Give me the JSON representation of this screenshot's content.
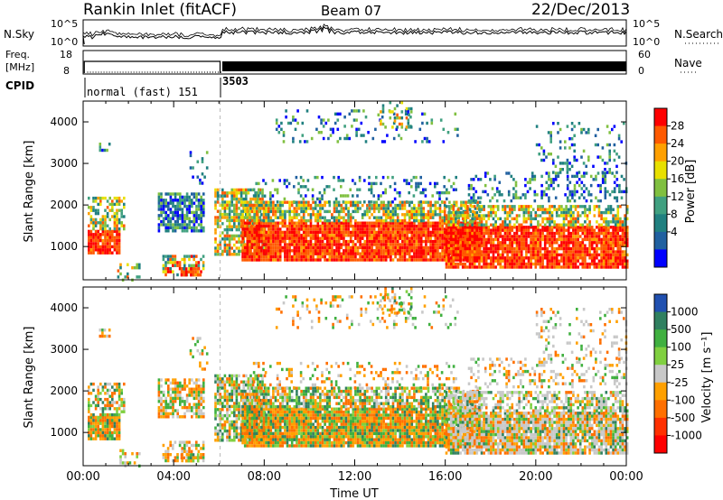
{
  "header": {
    "station": "Rankin Inlet (fitACF)",
    "beam": "Beam 07",
    "date": "22/Dec/2013"
  },
  "time_axis": {
    "label": "Time UT",
    "ticks": [
      "00:00",
      "04:00",
      "08:00",
      "12:00",
      "16:00",
      "20:00",
      "00:00"
    ],
    "range_hours": [
      0,
      24
    ]
  },
  "top_panels": {
    "nsky": {
      "left_label": "N.Sky",
      "right_label": "N.Search",
      "left_ticks": [
        "10^5",
        "10^0"
      ],
      "right_ticks": [
        "10^5",
        "10^0"
      ]
    },
    "freq": {
      "left_label_line1": "Freq.",
      "left_label_line2": "[MHz]",
      "right_label": "Nave",
      "left_ticks": [
        "18",
        "8"
      ],
      "right_ticks": [
        "60",
        "0"
      ]
    },
    "cpid": {
      "label": "CPID",
      "segments": [
        {
          "label": "normal (fast) 151",
          "start": 0,
          "end": 6.1
        },
        {
          "label": "3503",
          "start": 6.1,
          "end": 24
        }
      ]
    }
  },
  "chart_data": [
    {
      "type": "heatmap",
      "ylabel": "Slant Range [km]",
      "xlabel": "",
      "x_range_hours": [
        0,
        24
      ],
      "ylim": [
        200,
        4500
      ],
      "y_ticks": [
        1000,
        2000,
        3000,
        4000
      ],
      "colorbar": {
        "label": "Power [dB]",
        "ticks": [
          "28",
          "24",
          "20",
          "16",
          "12",
          "8",
          "4"
        ],
        "colors": [
          "#ff0000",
          "#ff5a00",
          "#ffa000",
          "#e8e000",
          "#80c040",
          "#40a080",
          "#208080",
          "#2060a0",
          "#0000ff"
        ]
      }
    },
    {
      "type": "heatmap",
      "ylabel": "Slant Range [km]",
      "xlabel": "Time UT",
      "x_range_hours": [
        0,
        24
      ],
      "ylim": [
        200,
        4500
      ],
      "y_ticks": [
        1000,
        2000,
        3000,
        4000
      ],
      "colorbar": {
        "label": "Velocity [m s⁻¹]",
        "ticks": [
          "1000",
          "500",
          "100",
          "25",
          "-25",
          "-100",
          "-500",
          "-1000"
        ],
        "colors": [
          "#2050b0",
          "#308060",
          "#40b040",
          "#80d040",
          "#c8c8c8",
          "#ffa000",
          "#ff7000",
          "#ff3000",
          "#ff0000"
        ]
      }
    }
  ]
}
